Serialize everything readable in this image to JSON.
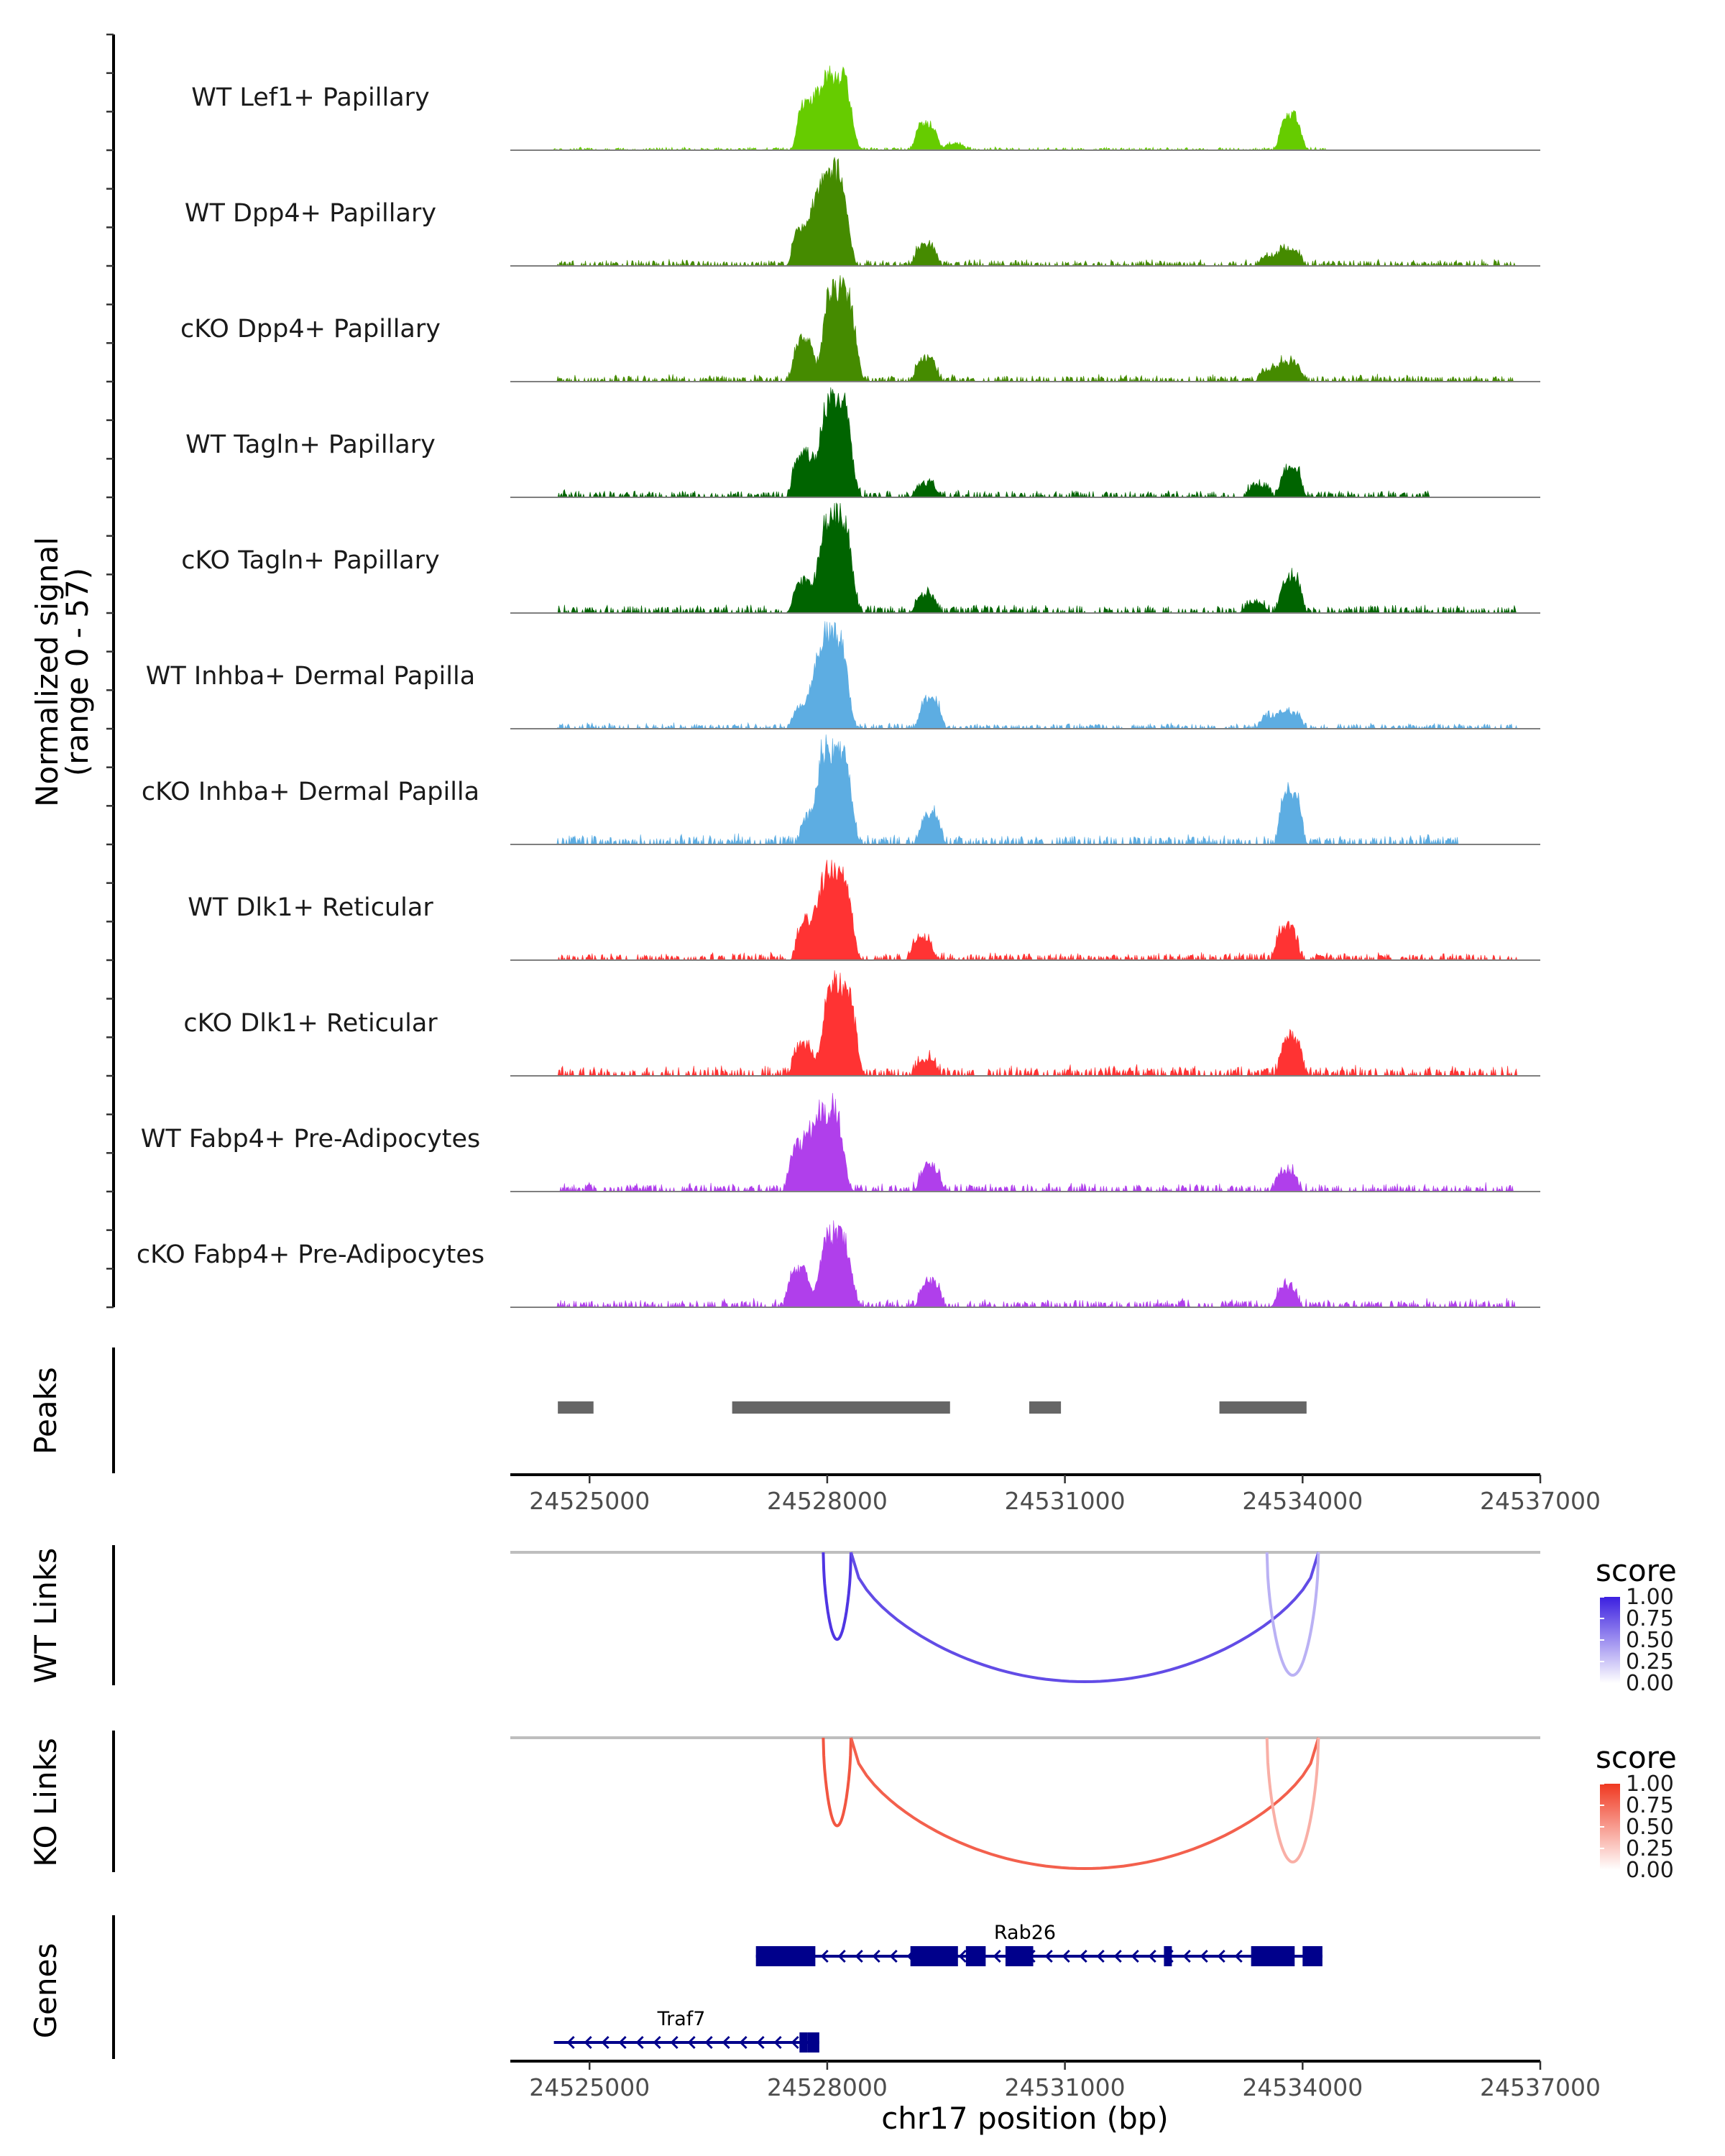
{
  "chart_data": {
    "type": "coverage",
    "chromosome": "chr17",
    "xlabel": "chr17 position (bp)",
    "xlim": [
      24524000,
      24537000
    ],
    "x_ticks": [
      24525000,
      24528000,
      24531000,
      24534000,
      24537000
    ],
    "x_tick_labels": [
      "24525000",
      "24528000",
      "24531000",
      "24534000",
      "24537000"
    ],
    "ylabel_line1": "Normalized signal",
    "ylabel_line2": "(range 0 - 57)",
    "y_range": [
      0,
      57
    ],
    "tracks": [
      {
        "name": "WT Lef1+ Papillary",
        "color": "#66CC00",
        "peaks": [
          [
            24527750,
            24
          ],
          [
            24528100,
            40
          ],
          [
            24529250,
            14
          ],
          [
            24529600,
            3
          ],
          [
            24533850,
            18
          ]
        ],
        "noise": 0.5,
        "extent": [
          24524500,
          24534300
        ]
      },
      {
        "name": "WT Dpp4+ Papillary",
        "color": "#458B00",
        "peaks": [
          [
            24527700,
            20
          ],
          [
            24528050,
            50
          ],
          [
            24529250,
            11
          ],
          [
            24533600,
            5
          ],
          [
            24533850,
            8
          ]
        ],
        "noise": 1.0,
        "extent": [
          24524600,
          24536700
        ]
      },
      {
        "name": "cKO Dpp4+ Papillary",
        "color": "#458B00",
        "peaks": [
          [
            24527700,
            22
          ],
          [
            24528150,
            50
          ],
          [
            24529250,
            12
          ],
          [
            24533600,
            6
          ],
          [
            24533850,
            10
          ]
        ],
        "noise": 1.1,
        "extent": [
          24524600,
          24536700
        ]
      },
      {
        "name": "WT Tagln+ Papillary",
        "color": "#006400",
        "peaks": [
          [
            24527700,
            22
          ],
          [
            24528100,
            51
          ],
          [
            24529250,
            7
          ],
          [
            24533450,
            6
          ],
          [
            24533850,
            15
          ]
        ],
        "noise": 1.1,
        "extent": [
          24524600,
          24535600
        ]
      },
      {
        "name": "cKO Tagln+ Papillary",
        "color": "#006400",
        "peaks": [
          [
            24527700,
            16
          ],
          [
            24528100,
            52
          ],
          [
            24529250,
            9
          ],
          [
            24533400,
            5
          ],
          [
            24533850,
            19
          ]
        ],
        "noise": 1.3,
        "extent": [
          24524600,
          24536700
        ]
      },
      {
        "name": "WT Inhba+ Dermal Papilla",
        "color": "#5DADE2",
        "peaks": [
          [
            24527700,
            12
          ],
          [
            24528050,
            50
          ],
          [
            24529300,
            15
          ],
          [
            24533600,
            6
          ],
          [
            24533850,
            8
          ]
        ],
        "noise": 0.9,
        "extent": [
          24524600,
          24536700
        ]
      },
      {
        "name": "cKO Inhba+ Dermal Papilla",
        "color": "#5DADE2",
        "peaks": [
          [
            24527800,
            14
          ],
          [
            24528100,
            50
          ],
          [
            24529300,
            15
          ],
          [
            24533850,
            26
          ]
        ],
        "noise": 1.6,
        "extent": [
          24524600,
          24536000
        ]
      },
      {
        "name": "WT Dlk1+ Reticular",
        "color": "#FF3333",
        "peaks": [
          [
            24527750,
            20
          ],
          [
            24528100,
            48
          ],
          [
            24529200,
            11
          ],
          [
            24533800,
            17
          ]
        ],
        "noise": 1.2,
        "extent": [
          24524600,
          24536700
        ]
      },
      {
        "name": "cKO Dlk1+ Reticular",
        "color": "#FF3333",
        "peaks": [
          [
            24527700,
            15
          ],
          [
            24528150,
            48
          ],
          [
            24529250,
            8
          ],
          [
            24533850,
            19
          ]
        ],
        "noise": 1.6,
        "extent": [
          24524600,
          24536700
        ]
      },
      {
        "name": "WT Fabp4+ Pre-Adipocytes",
        "color": "#B03FEB",
        "peaks": [
          [
            24527650,
            24
          ],
          [
            24528000,
            42
          ],
          [
            24529300,
            12
          ],
          [
            24533800,
            10
          ]
        ],
        "noise": 1.3,
        "extent": [
          24524600,
          24536700
        ]
      },
      {
        "name": "cKO Fabp4+ Pre-Adipocytes",
        "color": "#B03FEB",
        "peaks": [
          [
            24527650,
            20
          ],
          [
            24528100,
            38
          ],
          [
            24529300,
            12
          ],
          [
            24533800,
            10
          ]
        ],
        "noise": 1.3,
        "extent": [
          24524600,
          24536700
        ]
      }
    ],
    "peaks_label": "Peaks",
    "peak_regions": [
      [
        24524600,
        24525050
      ],
      [
        24526800,
        24529550
      ],
      [
        24530550,
        24530950
      ],
      [
        24532950,
        24534050
      ]
    ],
    "wt_links": {
      "label": "WT Links",
      "legend_title": "score",
      "legend_ticks": [
        "1.00",
        "0.75",
        "0.50",
        "0.25",
        "0.00"
      ],
      "color_high": "#3B1FE0",
      "links": [
        {
          "start": 24527950,
          "end": 24528300,
          "score": 0.9
        },
        {
          "start": 24528300,
          "end": 24534200,
          "score": 0.8
        },
        {
          "start": 24533550,
          "end": 24534200,
          "score": 0.35
        }
      ]
    },
    "ko_links": {
      "label": "KO Links",
      "legend_title": "score",
      "legend_ticks": [
        "1.00",
        "0.75",
        "0.50",
        "0.25",
        "0.00"
      ],
      "color_high": "#F03820",
      "links": [
        {
          "start": 24527950,
          "end": 24528300,
          "score": 0.85
        },
        {
          "start": 24528300,
          "end": 24534200,
          "score": 0.8
        },
        {
          "start": 24533550,
          "end": 24534200,
          "score": 0.4
        }
      ]
    },
    "genes_label": "Genes",
    "genes": [
      {
        "name": "Rab26",
        "start": 24527100,
        "end": 24534250,
        "strand": "-",
        "exons": [
          [
            24527100,
            24527850
          ],
          [
            24529050,
            24529650
          ],
          [
            24529750,
            24530000
          ],
          [
            24530250,
            24530600
          ],
          [
            24532250,
            24532350
          ],
          [
            24533350,
            24533900
          ],
          [
            24534000,
            24534250
          ]
        ]
      },
      {
        "name": "Traf7",
        "start": 24524550,
        "end": 24527900,
        "strand": "-",
        "exons": [
          [
            24527650,
            24527750
          ],
          [
            24527750,
            24527900
          ]
        ]
      }
    ]
  }
}
